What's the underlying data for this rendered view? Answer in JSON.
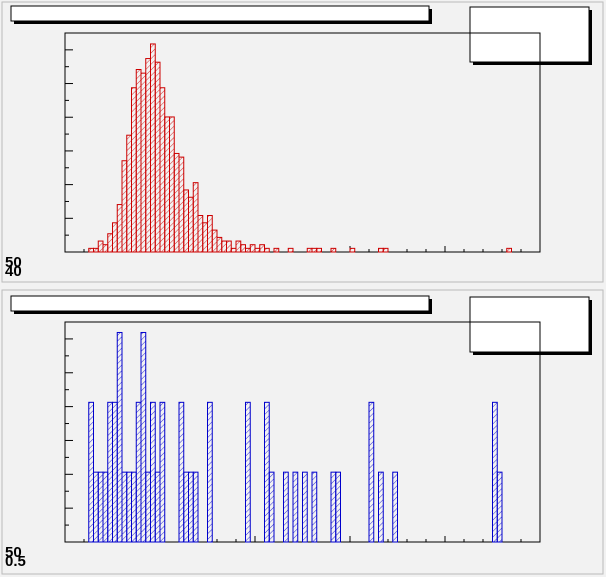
{
  "chart_data": [
    {
      "type": "histogram",
      "color": "#cc0000",
      "hatch": true,
      "bins": [
        0,
        1,
        2,
        3,
        4,
        5,
        6,
        7,
        8,
        9,
        10,
        11,
        12,
        13,
        14,
        15,
        16,
        17,
        18,
        19,
        20,
        21,
        22,
        23,
        24,
        25,
        26,
        27,
        28,
        29,
        30,
        31,
        32,
        33,
        34,
        35,
        36,
        37,
        38,
        39,
        40,
        41,
        42,
        43,
        44,
        45,
        46,
        47,
        48,
        49,
        50,
        51,
        52,
        53,
        54,
        55,
        56,
        57,
        58,
        59,
        60,
        61,
        62,
        63,
        64,
        65,
        66,
        67,
        68,
        69,
        70,
        71,
        72,
        73,
        74,
        75,
        76,
        77,
        78,
        79,
        80,
        81,
        82,
        83,
        84,
        85,
        86,
        87,
        88,
        89,
        90,
        91,
        92,
        93,
        94,
        95,
        96,
        97,
        98,
        99,
        100
      ],
      "values": [
        0,
        0,
        0,
        0,
        0,
        1,
        1,
        3,
        2,
        5,
        8,
        13,
        25,
        32,
        45,
        50,
        49,
        53,
        57,
        52,
        45,
        37,
        37,
        27,
        26,
        17,
        15,
        19,
        10,
        8,
        10,
        6,
        4,
        3,
        3,
        1,
        3,
        2,
        1,
        2,
        1,
        2,
        1,
        0,
        1,
        0,
        0,
        1,
        0,
        0,
        0,
        1,
        1,
        1,
        0,
        0,
        1,
        0,
        0,
        0,
        1,
        0,
        0,
        0,
        0,
        0,
        1,
        1,
        0,
        0,
        0,
        0,
        0,
        0,
        0,
        0,
        0,
        0,
        0,
        0,
        0,
        0,
        0,
        0,
        0,
        0,
        0,
        0,
        0,
        0,
        0,
        0,
        0,
        1,
        0,
        0,
        0,
        0,
        0,
        0
      ],
      "xlim": [
        0,
        100
      ],
      "ylim": [
        0,
        60
      ],
      "axis_labels": [
        "50",
        "40"
      ]
    },
    {
      "type": "histogram",
      "color": "#0000cc",
      "hatch": true,
      "bins": [
        0,
        1,
        2,
        3,
        4,
        5,
        6,
        7,
        8,
        9,
        10,
        11,
        12,
        13,
        14,
        15,
        16,
        17,
        18,
        19,
        20,
        21,
        22,
        23,
        24,
        25,
        26,
        27,
        28,
        29,
        30,
        31,
        32,
        33,
        34,
        35,
        36,
        37,
        38,
        39,
        40,
        41,
        42,
        43,
        44,
        45,
        46,
        47,
        48,
        49,
        50,
        51,
        52,
        53,
        54,
        55,
        56,
        57,
        58,
        59,
        60,
        61,
        62,
        63,
        64,
        65,
        66,
        67,
        68,
        69,
        70,
        71,
        72,
        73,
        74,
        75,
        76,
        77,
        78,
        79,
        80,
        81,
        82,
        83,
        84,
        85,
        86,
        87,
        88,
        89,
        90,
        91,
        92,
        93,
        94,
        95,
        96,
        97,
        98,
        99,
        100
      ],
      "values": [
        0,
        0,
        0,
        0,
        0,
        4,
        2,
        2,
        2,
        4,
        4,
        6,
        2,
        2,
        2,
        4,
        6,
        2,
        4,
        2,
        4,
        0,
        0,
        0,
        4,
        2,
        2,
        2,
        0,
        0,
        4,
        0,
        0,
        0,
        0,
        0,
        0,
        0,
        4,
        0,
        0,
        0,
        4,
        2,
        0,
        0,
        2,
        0,
        2,
        0,
        2,
        0,
        2,
        0,
        0,
        0,
        2,
        2,
        0,
        0,
        0,
        0,
        0,
        0,
        4,
        0,
        2,
        0,
        0,
        2,
        0,
        0,
        0,
        0,
        0,
        0,
        0,
        0,
        0,
        0,
        0,
        0,
        0,
        0,
        0,
        0,
        0,
        0,
        0,
        0,
        4,
        2,
        0,
        0,
        0,
        0,
        0,
        0,
        0,
        0
      ],
      "xlim": [
        0,
        100
      ],
      "ylim": [
        0,
        6.3
      ],
      "axis_labels": [
        "50",
        "0.5"
      ]
    }
  ]
}
